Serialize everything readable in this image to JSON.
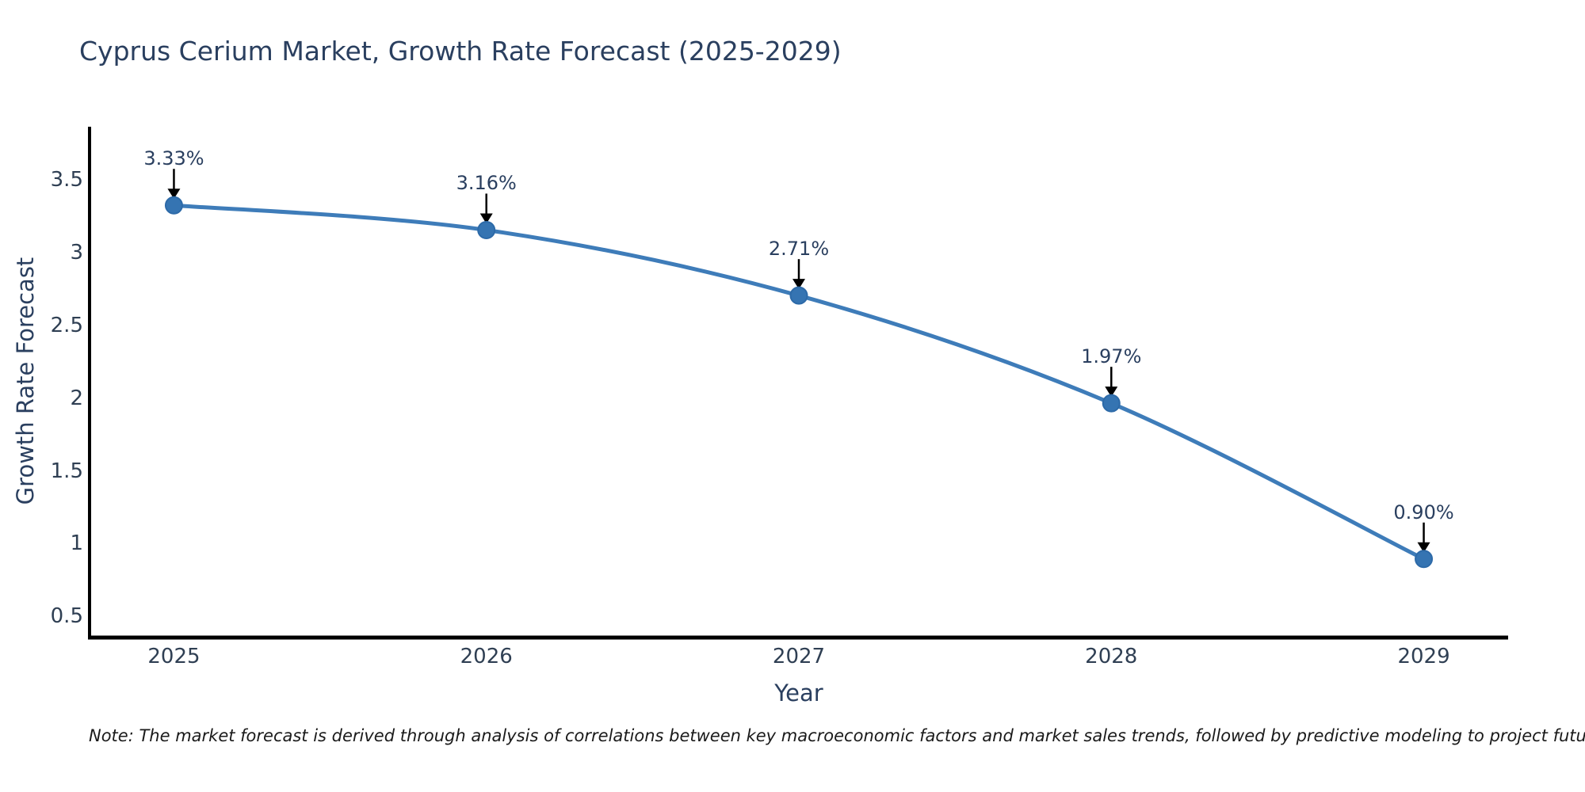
{
  "note": "Note: The market forecast is derived through analysis of correlations between key macroeconomic factors and market sales trends, followed by predictive modeling to project future sales",
  "chart_data": {
    "type": "line",
    "title": "Cyprus Cerium Market, Growth Rate Forecast (2025-2029)",
    "xlabel": "Year",
    "ylabel": "Growth Rate Forecast",
    "x": [
      2025,
      2026,
      2027,
      2028,
      2029
    ],
    "series": [
      {
        "name": "Growth Rate Forecast",
        "values": [
          3.33,
          3.16,
          2.71,
          1.97,
          0.9
        ]
      }
    ],
    "point_labels": [
      "3.33%",
      "3.16%",
      "2.71%",
      "1.97%",
      "0.90%"
    ],
    "xtick_labels": [
      "2025",
      "2026",
      "2027",
      "2028",
      "2029"
    ],
    "yticks": [
      0.5,
      1,
      1.5,
      2,
      2.5,
      3,
      3.5
    ],
    "ytick_labels": [
      "0.5",
      "1",
      "1.5",
      "2",
      "2.5",
      "3",
      "3.5"
    ],
    "xlim": [
      2024.73,
      2029.27
    ],
    "ylim": [
      0.36,
      3.87
    ],
    "grid": false,
    "legend": "none",
    "curve": "spline",
    "marker": "circle",
    "annotation_arrows": true,
    "colors": {
      "line": "#3e7cb9",
      "marker": "#3574b2",
      "marker_edge": "#2d6aa8",
      "arrow": "#000000",
      "axis": "#000000",
      "text": "#2a3f5f",
      "note": "#1a1a1a"
    }
  }
}
